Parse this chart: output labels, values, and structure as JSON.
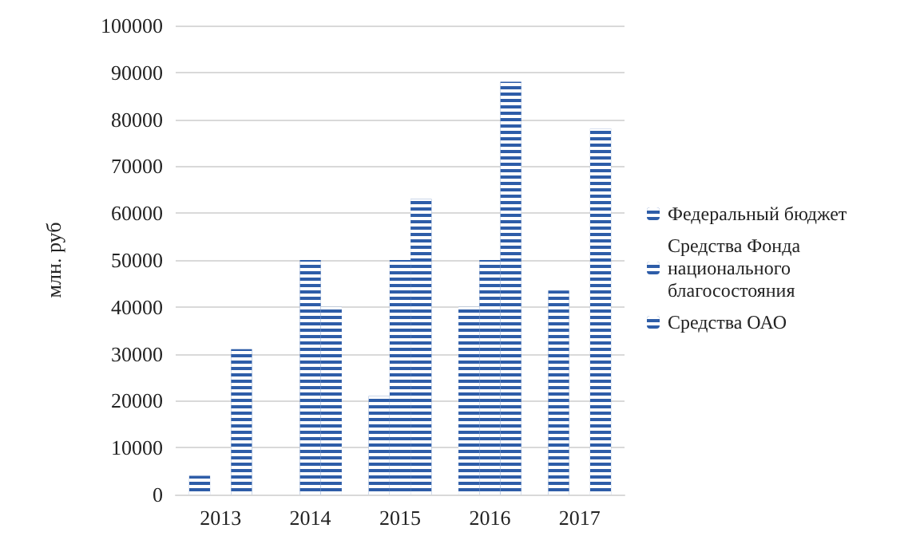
{
  "chart_data": {
    "type": "bar",
    "ylabel": "млн. руб",
    "categories": [
      "2013",
      "2014",
      "2015",
      "2016",
      "2017"
    ],
    "series": [
      {
        "name": "Федеральный бюджет",
        "color": "#2e5da8",
        "values": [
          4000,
          null,
          21000,
          40000,
          43500
        ]
      },
      {
        "name": "Средства Фонда национального благосостояния",
        "color": "#2e5da8",
        "values": [
          null,
          50000,
          50000,
          50000,
          null
        ]
      },
      {
        "name": "Средства ОАО",
        "color": "#2e5da8",
        "values": [
          31000,
          40000,
          63000,
          88000,
          78000
        ]
      }
    ],
    "ylim": [
      0,
      100000
    ],
    "yticks": [
      0,
      10000,
      20000,
      30000,
      40000,
      50000,
      60000,
      70000,
      80000,
      90000,
      100000
    ],
    "grid": "y",
    "legend": "right"
  }
}
